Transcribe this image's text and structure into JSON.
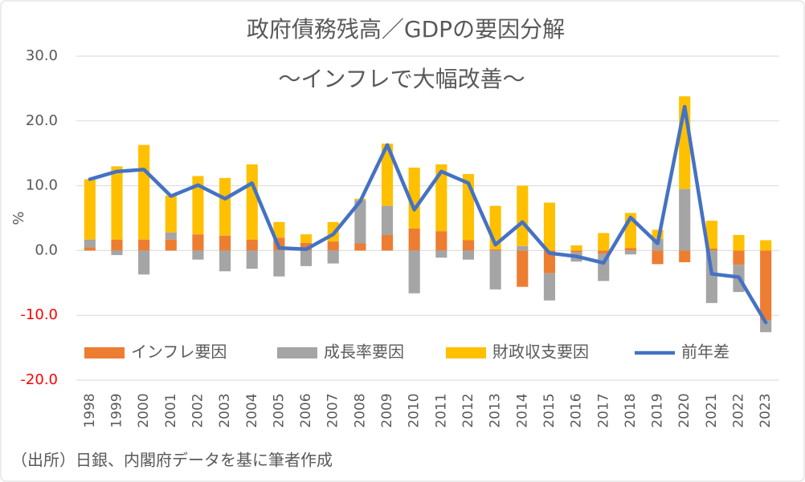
{
  "chart_data": {
    "type": "bar",
    "title": "政府債務残高／GDPの要因分解",
    "subtitle": "～インフレで大幅改善～",
    "y_label": "%",
    "footnote": "（出所）日銀、内閣府データを基に筆者作成",
    "stacked": true,
    "grid": true,
    "legend": "bottom-left",
    "categories": [
      "1998",
      "1999",
      "2000",
      "2001",
      "2002",
      "2003",
      "2004",
      "2005",
      "2006",
      "2007",
      "2008",
      "2009",
      "2010",
      "2011",
      "2012",
      "2013",
      "2014",
      "2015",
      "2016",
      "2017",
      "2018",
      "2019",
      "2020",
      "2021",
      "2022",
      "2023"
    ],
    "ylim": [
      -20,
      30
    ],
    "yticks": [
      {
        "value": -20,
        "label": "-20.0"
      },
      {
        "value": -10,
        "label": "-10.0"
      },
      {
        "value": 0,
        "label": "0.0"
      },
      {
        "value": 10,
        "label": "10.0"
      },
      {
        "value": 20,
        "label": "20.0"
      },
      {
        "value": 30,
        "label": "30.0"
      }
    ],
    "negative_tick_color": "#ff0000",
    "series": [
      {
        "name": "インフレ要因",
        "color": "#ED7D31",
        "values": [
          0.5,
          1.7,
          1.7,
          1.7,
          2.5,
          2.3,
          1.7,
          2.0,
          1.2,
          1.4,
          1.1,
          2.4,
          3.4,
          3.0,
          1.6,
          0.2,
          -5.6,
          -3.5,
          -0.3,
          -0.5,
          0.4,
          -2.1,
          -1.8,
          0.3,
          -2.2,
          -10.8
        ]
      },
      {
        "name": "成長率要因",
        "color": "#A5A5A5",
        "values": [
          1.2,
          -0.7,
          -3.7,
          1.1,
          -1.4,
          -3.2,
          -2.8,
          -4.0,
          -2.4,
          -2.0,
          6.7,
          4.5,
          -6.6,
          -1.1,
          -1.4,
          -6.0,
          0.7,
          -4.2,
          -1.4,
          -4.2,
          -0.6,
          1.8,
          9.5,
          -8.1,
          -4.2,
          -1.8
        ]
      },
      {
        "name": "財政収支要因",
        "color": "#FFC000",
        "values": [
          9.3,
          11.3,
          14.6,
          5.7,
          9.0,
          8.9,
          11.6,
          2.4,
          1.3,
          3.0,
          0.2,
          9.6,
          9.4,
          10.3,
          10.2,
          6.7,
          9.3,
          7.4,
          0.8,
          2.7,
          5.4,
          1.4,
          14.3,
          4.3,
          2.4,
          1.6
        ]
      },
      {
        "name": "前年差",
        "type": "line",
        "color": "#4472C4",
        "values": [
          11.0,
          12.2,
          12.5,
          8.4,
          10.1,
          8.0,
          10.4,
          0.4,
          0.2,
          2.5,
          7.6,
          16.3,
          6.3,
          12.2,
          10.4,
          0.9,
          4.4,
          -0.4,
          -0.9,
          -1.9,
          5.1,
          1.1,
          22.2,
          -3.6,
          -4.1,
          -11.1
        ]
      }
    ]
  }
}
